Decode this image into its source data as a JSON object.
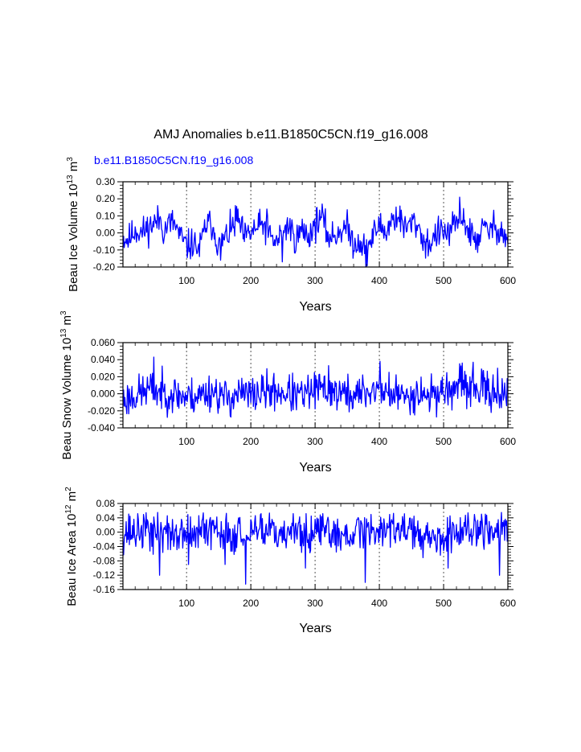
{
  "title": "AMJ Anomalies b.e11.B1850C5CN.f19_g16.008",
  "case_label": "b.e11.B1850C5CN.f19_g16.008",
  "colors": {
    "series": "#0000ff",
    "axes": "#000000",
    "gridline": "#555555"
  },
  "chart_data": [
    {
      "type": "line",
      "name": "beau-ice-volume",
      "ylabel_main": "Beau Ice Volume 10",
      "ylabel_exp": "13",
      "ylabel_unit": " m",
      "ylabel_unit_exp": "3",
      "xlabel": "Years",
      "xlim": [
        1,
        600
      ],
      "ylim": [
        -0.2,
        0.3
      ],
      "xticks": [
        100,
        200,
        300,
        400,
        500,
        600
      ],
      "yticks": [
        -0.2,
        -0.1,
        0.0,
        0.1,
        0.2,
        0.3
      ],
      "ytick_labels": [
        "-0.20",
        "-0.10",
        "0.00",
        "0.10",
        "0.20",
        "0.30"
      ],
      "grid_x": [
        100,
        200,
        300,
        400,
        500
      ],
      "series": [
        {
          "name": "b.e11.B1850C5CN.f19_g16.008",
          "anchors": [
            [
              1,
              -0.03
            ],
            [
              10,
              -0.04
            ],
            [
              20,
              0.02
            ],
            [
              30,
              0.0
            ],
            [
              40,
              0.03
            ],
            [
              50,
              0.06
            ],
            [
              60,
              0.08
            ],
            [
              65,
              0.0
            ],
            [
              70,
              0.05
            ],
            [
              80,
              0.06
            ],
            [
              90,
              -0.02
            ],
            [
              100,
              -0.08
            ],
            [
              110,
              -0.06
            ],
            [
              120,
              -0.1
            ],
            [
              130,
              0.05
            ],
            [
              140,
              0.05
            ],
            [
              150,
              -0.08
            ],
            [
              160,
              -0.03
            ],
            [
              170,
              0.02
            ],
            [
              180,
              0.08
            ],
            [
              190,
              -0.03
            ],
            [
              200,
              0.0
            ],
            [
              210,
              0.03
            ],
            [
              220,
              0.05
            ],
            [
              230,
              -0.02
            ],
            [
              240,
              -0.06
            ],
            [
              250,
              0.02
            ],
            [
              260,
              0.04
            ],
            [
              270,
              -0.04
            ],
            [
              280,
              0.02
            ],
            [
              290,
              -0.02
            ],
            [
              300,
              0.05
            ],
            [
              310,
              0.1
            ],
            [
              320,
              -0.02
            ],
            [
              330,
              -0.02
            ],
            [
              340,
              0.02
            ],
            [
              350,
              0.03
            ],
            [
              360,
              -0.06
            ],
            [
              370,
              -0.05
            ],
            [
              380,
              -0.1
            ],
            [
              390,
              -0.02
            ],
            [
              400,
              0.05
            ],
            [
              410,
              0.0
            ],
            [
              420,
              0.08
            ],
            [
              430,
              0.1
            ],
            [
              440,
              0.02
            ],
            [
              450,
              0.06
            ],
            [
              460,
              0.05
            ],
            [
              470,
              -0.06
            ],
            [
              480,
              -0.06
            ],
            [
              490,
              0.0
            ],
            [
              500,
              0.0
            ],
            [
              510,
              0.0
            ],
            [
              520,
              0.06
            ],
            [
              530,
              0.1
            ],
            [
              540,
              0.0
            ],
            [
              550,
              -0.05
            ],
            [
              560,
              0.02
            ],
            [
              570,
              0.02
            ],
            [
              580,
              0.03
            ],
            [
              590,
              0.02
            ],
            [
              600,
              -0.06
            ]
          ],
          "amplitude": 0.045,
          "seed": 11,
          "spikes": [
            [
              176,
              0.16
            ],
            [
              225,
              0.14
            ],
            [
              249,
              -0.17
            ],
            [
              311,
              0.17
            ],
            [
              379,
              -0.2
            ],
            [
              525,
              0.21
            ],
            [
              153,
              -0.16
            ]
          ]
        }
      ]
    },
    {
      "type": "line",
      "name": "beau-snow-volume",
      "ylabel_main": "Beau Snow Volume 10",
      "ylabel_exp": "13",
      "ylabel_unit": " m",
      "ylabel_unit_exp": "3",
      "xlabel": "Years",
      "xlim": [
        1,
        600
      ],
      "ylim": [
        -0.04,
        0.06
      ],
      "xticks": [
        100,
        200,
        300,
        400,
        500,
        600
      ],
      "yticks": [
        -0.04,
        -0.02,
        0.0,
        0.02,
        0.04,
        0.06
      ],
      "ytick_labels": [
        "-0.040",
        "-0.020",
        "0.000",
        "0.020",
        "0.040",
        "0.060"
      ],
      "grid_x": [
        100,
        200,
        300,
        400,
        500
      ],
      "series": [
        {
          "name": "b.e11.B1850C5CN.f19_g16.008",
          "anchors": [
            [
              1,
              -0.008
            ],
            [
              20,
              -0.002
            ],
            [
              40,
              0.005
            ],
            [
              60,
              0.002
            ],
            [
              80,
              0.0
            ],
            [
              100,
              -0.004
            ],
            [
              120,
              -0.002
            ],
            [
              140,
              0.004
            ],
            [
              160,
              -0.005
            ],
            [
              180,
              0.0
            ],
            [
              200,
              -0.002
            ],
            [
              220,
              0.002
            ],
            [
              240,
              0.003
            ],
            [
              260,
              0.0
            ],
            [
              280,
              -0.003
            ],
            [
              300,
              0.004
            ],
            [
              320,
              0.006
            ],
            [
              340,
              0.0
            ],
            [
              360,
              -0.002
            ],
            [
              380,
              0.002
            ],
            [
              400,
              0.006
            ],
            [
              420,
              0.0
            ],
            [
              440,
              -0.004
            ],
            [
              460,
              0.002
            ],
            [
              480,
              -0.002
            ],
            [
              500,
              0.004
            ],
            [
              520,
              0.006
            ],
            [
              540,
              0.008
            ],
            [
              560,
              0.004
            ],
            [
              580,
              0.003
            ],
            [
              600,
              -0.004
            ]
          ],
          "amplitude": 0.011,
          "seed": 23,
          "spikes": [
            [
              49,
              0.043
            ],
            [
              168,
              -0.026
            ],
            [
              321,
              0.033
            ],
            [
              401,
              0.038
            ],
            [
              529,
              0.036
            ],
            [
              546,
              0.037
            ],
            [
              584,
              0.03
            ]
          ]
        }
      ]
    },
    {
      "type": "line",
      "name": "beau-ice-area",
      "ylabel_main": "Beau Ice Area 10",
      "ylabel_exp": "12",
      "ylabel_unit": " m",
      "ylabel_unit_exp": "2",
      "xlabel": "Years",
      "xlim": [
        1,
        600
      ],
      "ylim": [
        -0.16,
        0.08
      ],
      "xticks": [
        100,
        200,
        300,
        400,
        500,
        600
      ],
      "yticks": [
        -0.16,
        -0.12,
        -0.08,
        -0.04,
        0.0,
        0.04,
        0.08
      ],
      "ytick_labels": [
        "-0.16",
        "-0.12",
        "-0.08",
        "-0.04",
        "0.00",
        "0.04",
        "0.08"
      ],
      "grid_x": [
        100,
        200,
        300,
        400,
        500
      ],
      "series": [
        {
          "name": "b.e11.B1850C5CN.f19_g16.008",
          "anchors": [
            [
              1,
              0.0
            ],
            [
              50,
              0.005
            ],
            [
              100,
              -0.01
            ],
            [
              150,
              0.005
            ],
            [
              200,
              -0.005
            ],
            [
              250,
              0.0
            ],
            [
              300,
              -0.005
            ],
            [
              350,
              0.0
            ],
            [
              400,
              0.01
            ],
            [
              450,
              0.01
            ],
            [
              500,
              -0.01
            ],
            [
              550,
              0.005
            ],
            [
              600,
              0.0
            ]
          ],
          "amplitude": 0.028,
          "seed": 37,
          "spikes": [
            [
              58,
              -0.12
            ],
            [
              192,
              -0.145
            ],
            [
              285,
              -0.1
            ],
            [
              378,
              -0.14
            ],
            [
              507,
              -0.1
            ],
            [
              587,
              -0.12
            ],
            [
              103,
              -0.09
            ],
            [
              160,
              -0.09
            ]
          ],
          "cap": 0.055
        }
      ]
    }
  ]
}
